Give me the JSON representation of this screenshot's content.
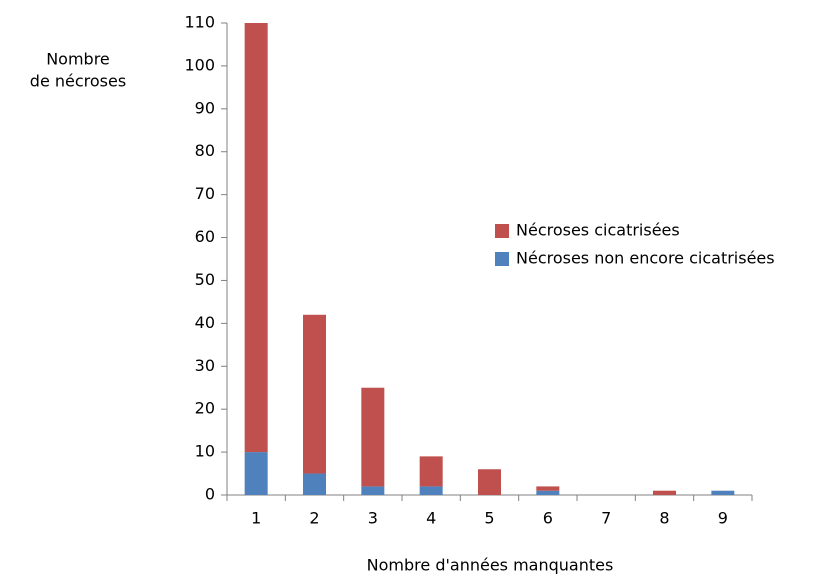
{
  "chart_data": {
    "type": "stacked_bar",
    "ylabel": [
      "Nombre",
      "de nécroses"
    ],
    "xlabel": "Nombre d'années manquantes",
    "categories": [
      "1",
      "2",
      "3",
      "4",
      "5",
      "6",
      "7",
      "8",
      "9"
    ],
    "series": [
      {
        "name": "Nécroses cicatrisées",
        "color": "#c0504d",
        "values": [
          100,
          37,
          23,
          7,
          6,
          1,
          0,
          1,
          0
        ]
      },
      {
        "name": "Nécroses non encore cicatrisées",
        "color": "#4f81bd",
        "values": [
          10,
          5,
          2,
          2,
          0,
          1,
          0,
          0,
          1
        ]
      }
    ],
    "ylim": [
      0,
      110
    ],
    "yticks": [
      0,
      10,
      20,
      30,
      40,
      50,
      60,
      70,
      80,
      90,
      100,
      110
    ],
    "grid": false,
    "legend": "right"
  }
}
